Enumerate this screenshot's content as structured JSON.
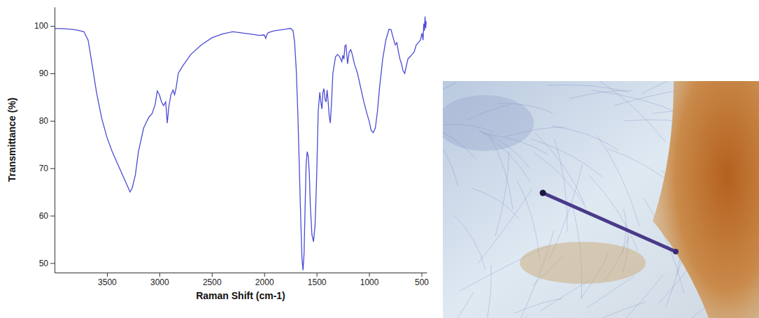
{
  "chart_data": {
    "type": "line",
    "x_label": "Raman Shift (cm-1)",
    "y_label": "Transmittance (%)",
    "color": "#4b4bd6",
    "xlim": [
      4000,
      450
    ],
    "xticks": [
      3500,
      3000,
      2500,
      2000,
      1500,
      1000,
      500
    ],
    "ylim": [
      48,
      104
    ],
    "yticks": [
      50,
      60,
      70,
      80,
      90,
      100
    ],
    "grid": false,
    "x": [
      4000,
      3900,
      3800,
      3720,
      3680,
      3650,
      3600,
      3550,
      3500,
      3450,
      3400,
      3350,
      3300,
      3280,
      3260,
      3230,
      3200,
      3150,
      3100,
      3070,
      3040,
      3020,
      3000,
      2980,
      2960,
      2940,
      2925,
      2910,
      2890,
      2870,
      2855,
      2840,
      2820,
      2780,
      2700,
      2600,
      2500,
      2400,
      2300,
      2200,
      2100,
      2050,
      2000,
      1985,
      1975,
      1960,
      1900,
      1800,
      1750,
      1725,
      1710,
      1695,
      1680,
      1665,
      1650,
      1640,
      1630,
      1620,
      1610,
      1600,
      1590,
      1580,
      1570,
      1560,
      1545,
      1530,
      1515,
      1500,
      1485,
      1470,
      1460,
      1450,
      1440,
      1430,
      1420,
      1410,
      1400,
      1390,
      1380,
      1370,
      1360,
      1345,
      1320,
      1300,
      1280,
      1260,
      1250,
      1240,
      1230,
      1220,
      1205,
      1190,
      1175,
      1160,
      1140,
      1110,
      1080,
      1050,
      1020,
      1000,
      980,
      960,
      940,
      920,
      900,
      870,
      840,
      810,
      790,
      770,
      750,
      735,
      720,
      705,
      690,
      675,
      660,
      645,
      630,
      610,
      590,
      570,
      550,
      530,
      510,
      495,
      485,
      478,
      472,
      466,
      460,
      455
    ],
    "values": [
      99.5,
      99.4,
      99.2,
      98.8,
      97.0,
      93.0,
      86.0,
      80.5,
      76.5,
      73.5,
      71.0,
      68.5,
      66.0,
      65.0,
      65.8,
      68.5,
      73.5,
      78.5,
      80.8,
      81.5,
      83.5,
      86.3,
      85.5,
      84.0,
      83.2,
      84.0,
      79.5,
      83.0,
      85.5,
      86.5,
      85.5,
      87.0,
      90.0,
      91.5,
      94.0,
      96.0,
      97.5,
      98.3,
      98.8,
      98.5,
      98.2,
      98.0,
      98.1,
      97.4,
      98.2,
      98.6,
      99.0,
      99.3,
      99.5,
      99.0,
      96.5,
      91.0,
      82.0,
      70.0,
      58.0,
      51.0,
      48.5,
      52.0,
      62.0,
      71.0,
      73.5,
      72.5,
      69.0,
      62.0,
      56.0,
      54.5,
      58.0,
      68.0,
      82.0,
      86.0,
      84.0,
      82.5,
      86.0,
      86.8,
      84.5,
      84.0,
      86.5,
      84.0,
      81.0,
      79.5,
      83.0,
      90.0,
      93.5,
      94.0,
      93.5,
      92.5,
      93.8,
      93.0,
      95.8,
      96.0,
      92.0,
      94.5,
      95.0,
      94.0,
      92.0,
      90.0,
      87.0,
      84.0,
      81.5,
      80.0,
      78.0,
      77.5,
      78.5,
      82.0,
      87.0,
      93.0,
      97.0,
      99.3,
      99.2,
      97.5,
      96.0,
      96.5,
      94.5,
      93.0,
      92.0,
      90.5,
      90.0,
      91.5,
      93.0,
      93.5,
      94.0,
      94.5,
      96.0,
      96.5,
      97.0,
      98.5,
      97.0,
      100.5,
      99.0,
      102.0,
      99.5,
      101.0
    ]
  }
}
